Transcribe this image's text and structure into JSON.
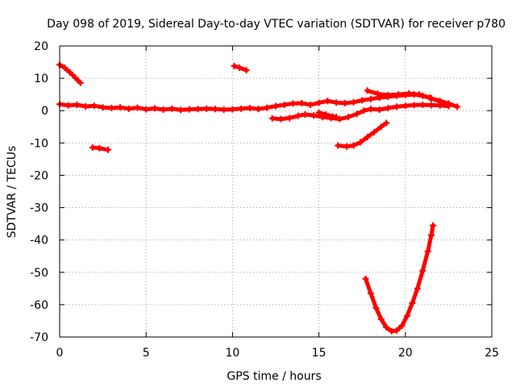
{
  "chart_data": {
    "type": "scatter",
    "title": "Day 098 of 2019, Sidereal Day-to-day VTEC variation (SDTVAR) for receiver p780",
    "xlabel": "GPS time / hours",
    "ylabel": "SDTVAR / TECUs",
    "xlim": [
      0,
      25
    ],
    "ylim": [
      -70,
      20
    ],
    "xticks": [
      "0",
      "5",
      "10",
      "15",
      "20",
      "25"
    ],
    "yticks": [
      "20",
      "10",
      "0",
      "-10",
      "-20",
      "-30",
      "-40",
      "-50",
      "-60",
      "-70"
    ],
    "grid": true,
    "legend": "none",
    "color": "#ff0000",
    "series": [
      {
        "points": [
          [
            0.0,
            14.2
          ],
          [
            0.3,
            13.2
          ],
          [
            0.6,
            11.8
          ],
          [
            0.9,
            10.2
          ],
          [
            1.2,
            8.6
          ]
        ]
      },
      {
        "points": [
          [
            1.9,
            -11.4
          ],
          [
            2.3,
            -11.6
          ],
          [
            2.8,
            -12.1
          ]
        ]
      },
      {
        "points": [
          [
            10.1,
            13.8
          ],
          [
            10.4,
            13.3
          ],
          [
            10.8,
            12.5
          ]
        ]
      },
      {
        "points": [
          [
            0.0,
            2.0
          ],
          [
            0.5,
            1.6
          ],
          [
            1.0,
            1.8
          ],
          [
            1.5,
            1.3
          ],
          [
            2.0,
            1.5
          ],
          [
            2.5,
            1.0
          ],
          [
            3.0,
            0.8
          ],
          [
            3.5,
            1.0
          ],
          [
            4.0,
            0.6
          ],
          [
            4.5,
            0.9
          ],
          [
            5.0,
            0.4
          ],
          [
            5.5,
            0.7
          ],
          [
            6.0,
            0.3
          ],
          [
            6.5,
            0.6
          ],
          [
            7.0,
            0.2
          ],
          [
            7.5,
            0.4
          ],
          [
            8.0,
            0.5
          ],
          [
            8.5,
            0.6
          ],
          [
            9.0,
            0.5
          ],
          [
            9.5,
            0.3
          ],
          [
            10.0,
            0.4
          ],
          [
            10.5,
            0.6
          ],
          [
            11.0,
            0.8
          ],
          [
            11.5,
            0.5
          ],
          [
            12.0,
            0.9
          ],
          [
            12.5,
            1.4
          ],
          [
            13.0,
            1.8
          ],
          [
            13.5,
            2.2
          ],
          [
            14.0,
            2.3
          ],
          [
            14.5,
            1.8
          ],
          [
            15.0,
            2.4
          ],
          [
            15.5,
            3.0
          ],
          [
            16.0,
            2.5
          ],
          [
            16.5,
            2.3
          ],
          [
            17.0,
            2.6
          ],
          [
            17.5,
            3.2
          ],
          [
            18.0,
            3.6
          ],
          [
            18.5,
            4.0
          ],
          [
            19.0,
            4.3
          ],
          [
            19.5,
            4.6
          ],
          [
            20.0,
            4.8
          ],
          [
            20.5,
            5.0
          ],
          [
            21.0,
            4.6
          ],
          [
            21.5,
            3.8
          ],
          [
            22.0,
            3.0
          ],
          [
            22.5,
            2.2
          ],
          [
            23.0,
            1.2
          ]
        ]
      },
      {
        "points": [
          [
            17.8,
            6.2
          ],
          [
            18.4,
            5.2
          ],
          [
            19.0,
            4.8
          ],
          [
            19.6,
            5.0
          ],
          [
            20.2,
            5.3
          ],
          [
            20.8,
            5.0
          ],
          [
            21.4,
            4.0
          ],
          [
            22.0,
            2.8
          ]
        ]
      },
      {
        "points": [
          [
            12.3,
            -2.4
          ],
          [
            12.8,
            -2.6
          ],
          [
            13.3,
            -2.3
          ],
          [
            13.8,
            -1.6
          ],
          [
            14.2,
            -1.2
          ],
          [
            14.7,
            -1.5
          ],
          [
            15.2,
            -2.0
          ],
          [
            15.7,
            -2.3
          ],
          [
            16.2,
            -2.6
          ],
          [
            16.7,
            -2.0
          ],
          [
            17.2,
            -1.0
          ],
          [
            17.6,
            0.0
          ],
          [
            18.0,
            0.5
          ],
          [
            18.5,
            0.3
          ],
          [
            19.0,
            0.8
          ],
          [
            19.5,
            1.2
          ],
          [
            20.0,
            1.5
          ],
          [
            20.5,
            1.7
          ],
          [
            21.0,
            1.8
          ],
          [
            21.5,
            1.7
          ],
          [
            22.0,
            1.6
          ],
          [
            22.5,
            1.4
          ]
        ]
      },
      {
        "points": [
          [
            15.0,
            -0.6
          ],
          [
            15.4,
            -1.2
          ],
          [
            15.8,
            -1.8
          ],
          [
            16.0,
            -2.0
          ]
        ]
      },
      {
        "points": [
          [
            16.1,
            -10.8
          ],
          [
            16.6,
            -11.1
          ],
          [
            17.0,
            -10.8
          ],
          [
            17.4,
            -9.8
          ],
          [
            17.8,
            -8.2
          ],
          [
            18.2,
            -6.6
          ],
          [
            18.6,
            -5.0
          ],
          [
            18.9,
            -3.8
          ]
        ]
      },
      {
        "points": [
          [
            17.7,
            -52.0
          ],
          [
            18.0,
            -56.5
          ],
          [
            18.3,
            -61.0
          ],
          [
            18.6,
            -64.5
          ],
          [
            18.9,
            -67.0
          ],
          [
            19.2,
            -68.2
          ],
          [
            19.5,
            -68.0
          ],
          [
            19.8,
            -66.5
          ],
          [
            20.1,
            -63.5
          ],
          [
            20.4,
            -59.5
          ],
          [
            20.7,
            -55.0
          ],
          [
            21.0,
            -49.5
          ],
          [
            21.3,
            -43.5
          ],
          [
            21.5,
            -38.5
          ],
          [
            21.6,
            -35.5
          ]
        ]
      }
    ]
  }
}
